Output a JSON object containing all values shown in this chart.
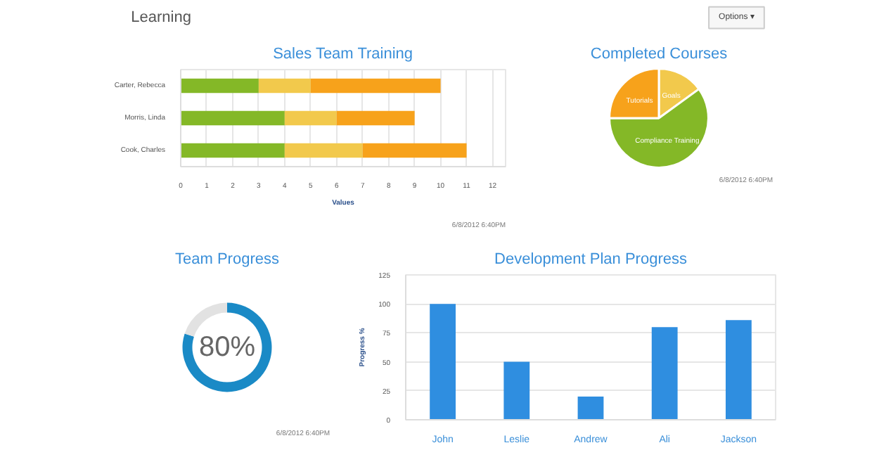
{
  "chart_data": [
    {
      "type": "other",
      "title": "Learning",
      "annotations": [
        "Options ▾"
      ]
    },
    {
      "type": "bar",
      "title": "Sales Team Training",
      "orientation": "horizontal",
      "stacked": true,
      "xlabel": "Values",
      "categories": [
        "Carter, Rebecca",
        "Morris, Linda",
        "Cook, Charles"
      ],
      "series": [
        {
          "color": "#84b827",
          "values": [
            3,
            4,
            4
          ]
        },
        {
          "color": "#f2c94c",
          "values": [
            2,
            2,
            3
          ]
        },
        {
          "color": "#f7a21b",
          "values": [
            5,
            3,
            4
          ]
        }
      ],
      "xlim": [
        0,
        12.5
      ],
      "xticks": [
        0,
        1,
        2,
        3,
        4,
        5,
        6,
        7,
        8,
        9,
        10,
        11,
        12
      ],
      "grid": "x",
      "annotations": [
        "6/8/2012 6:40PM"
      ]
    },
    {
      "type": "pie",
      "title": "Completed Courses",
      "categories": [
        "Goals",
        "Compliance Training",
        "Tutorials"
      ],
      "values": [
        15,
        60,
        25
      ],
      "colors": [
        "#f2c94c",
        "#84b827",
        "#f7a21b"
      ],
      "annotations": [
        "6/8/2012 6:40PM"
      ]
    },
    {
      "type": "donut",
      "title": "Team Progress",
      "categories": [
        null,
        null
      ],
      "values": [
        80,
        20
      ],
      "colors": [
        "#1a8ac6",
        "#e2e2e2"
      ],
      "value_labels": [
        "80%",
        null
      ],
      "annotations": [
        "6/8/2012 6:40PM"
      ]
    },
    {
      "type": "bar",
      "title": "Development Plan Progress",
      "ylabel": "Progress %",
      "categories": [
        "John",
        "Leslie",
        "Andrew",
        "Ali",
        "Jackson"
      ],
      "values": [
        100,
        50,
        20,
        80,
        86
      ],
      "color": "#2f8ee0",
      "ylim": [
        0,
        125
      ],
      "yticks": [
        0,
        25,
        50,
        75,
        100,
        125
      ],
      "grid": "y"
    }
  ]
}
